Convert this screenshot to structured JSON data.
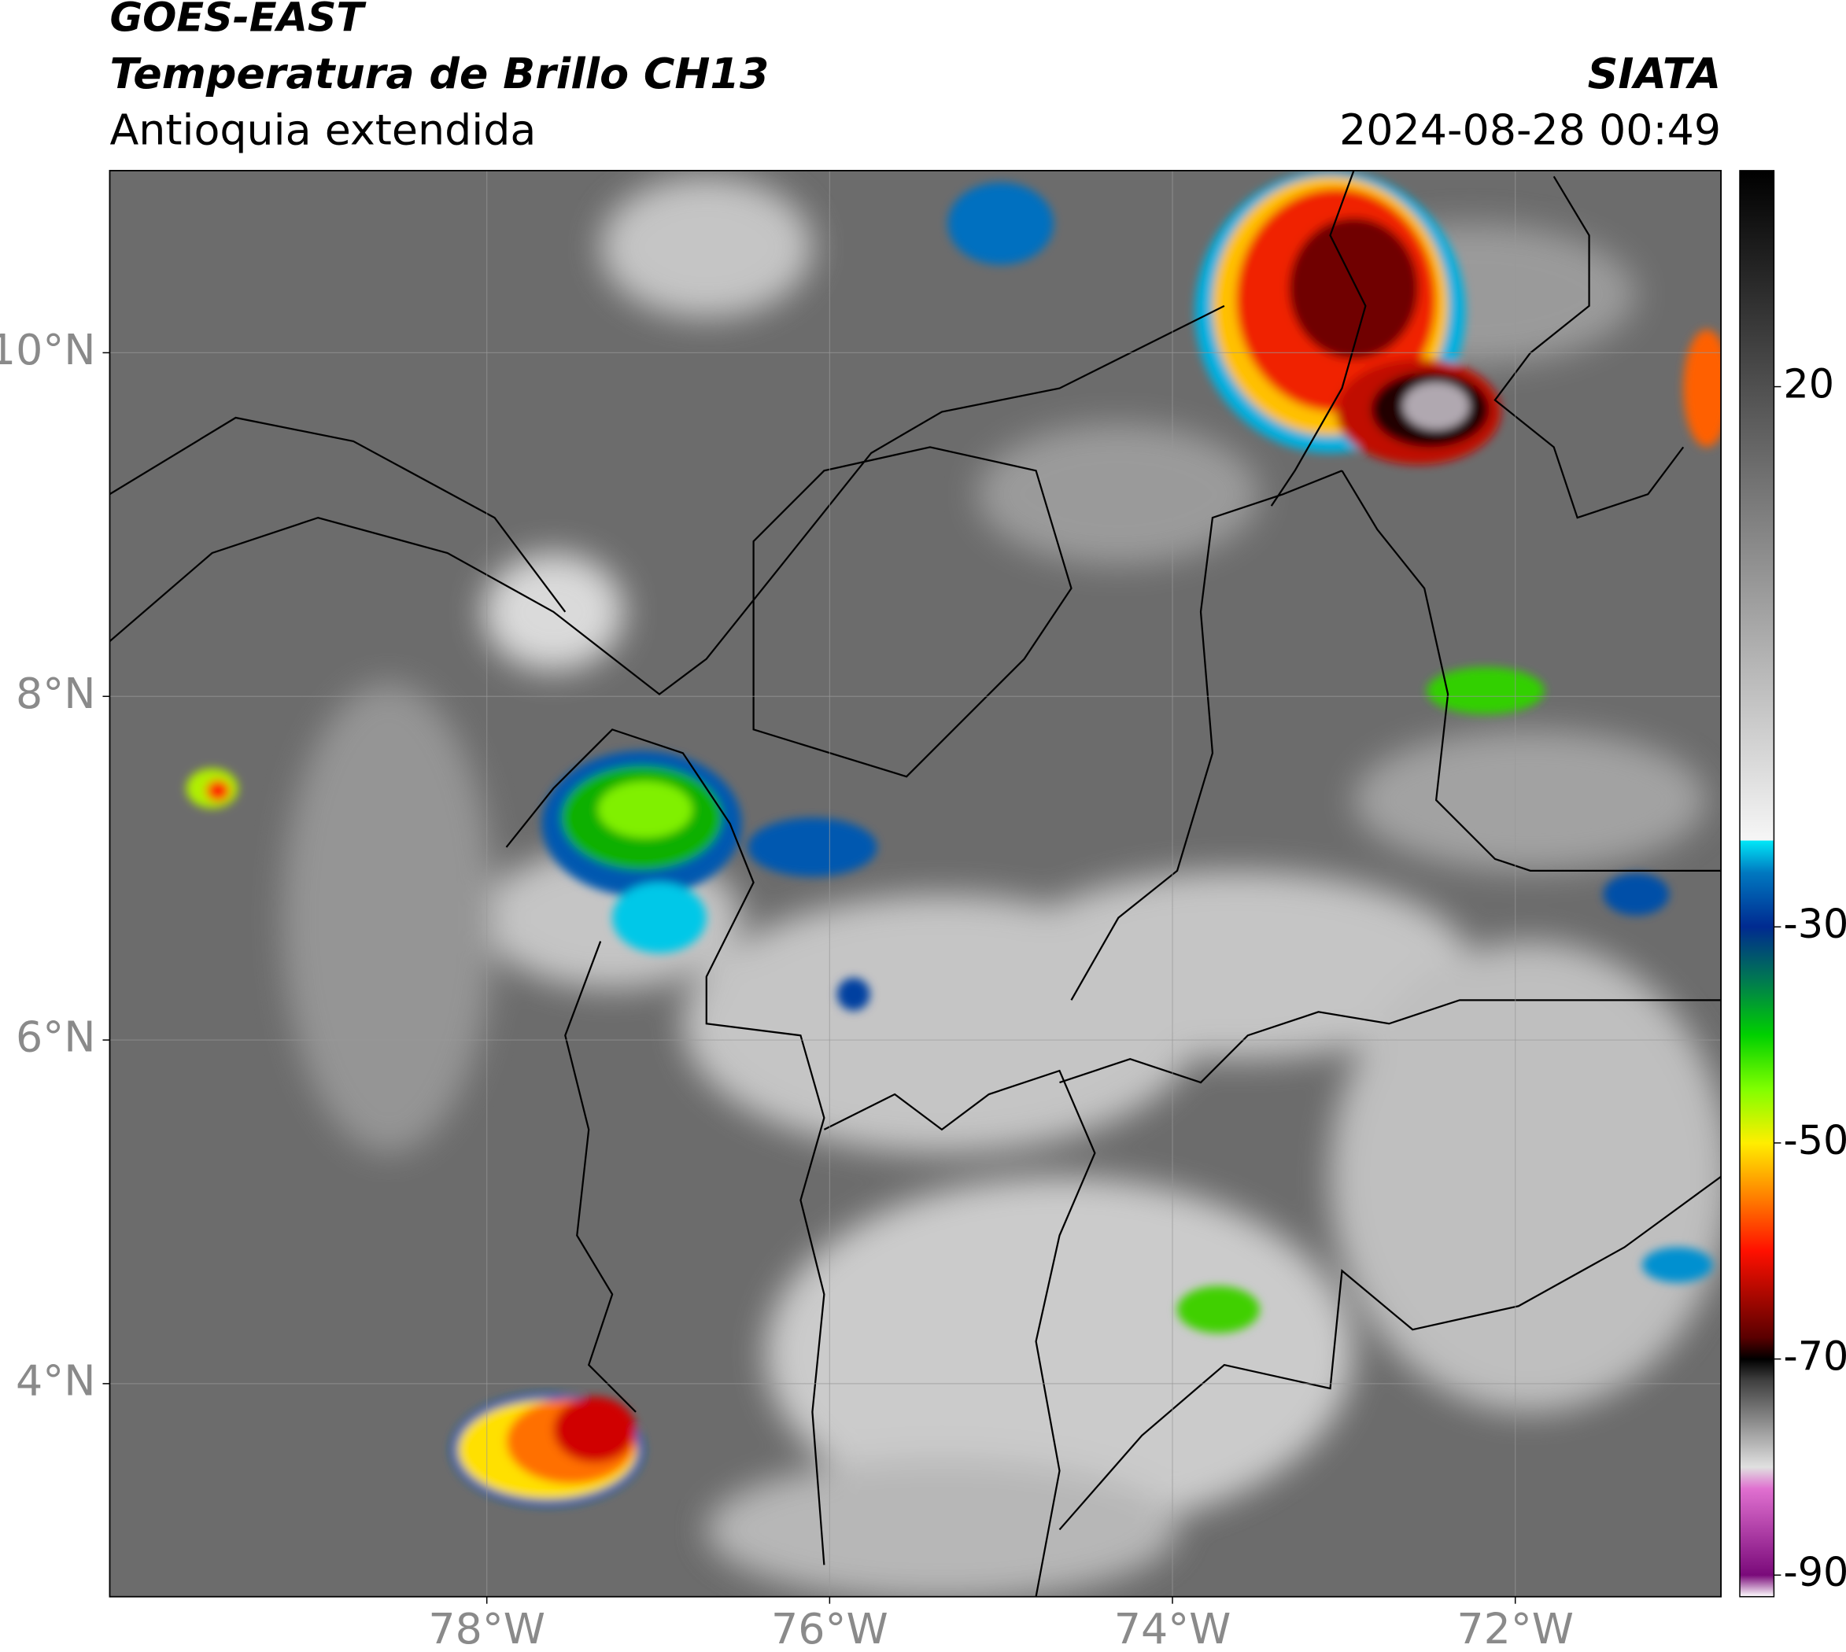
{
  "header": {
    "satellite": "GOES-EAST",
    "product": "Temperatura de Brillo CH13",
    "region": "Antioquia extendida",
    "source": "SIATA",
    "datetime": "2024-08-28 00:49"
  },
  "map": {
    "xlim": [
      -80.2,
      -70.8
    ],
    "ylim": [
      2.76,
      11.06
    ],
    "xticks": [
      {
        "value": -78,
        "label": "78°W"
      },
      {
        "value": -76,
        "label": "76°W"
      },
      {
        "value": -74,
        "label": "74°W"
      },
      {
        "value": -72,
        "label": "72°W"
      }
    ],
    "yticks": [
      {
        "value": 4,
        "label": "4°N"
      },
      {
        "value": 6,
        "label": "6°N"
      },
      {
        "value": 8,
        "label": "8°N"
      },
      {
        "value": 10,
        "label": "10°N"
      }
    ],
    "grid": true
  },
  "colorbar": {
    "lim": [
      -92,
      40
    ],
    "ticks": [
      -90,
      -70,
      -50,
      -30,
      20
    ],
    "colormap": [
      {
        "value": -92,
        "color": "#ffffff"
      },
      {
        "value": -90,
        "color": "#7a0a7a"
      },
      {
        "value": -82,
        "color": "#e070d0"
      },
      {
        "value": -80,
        "color": "#e0e0e0"
      },
      {
        "value": -72,
        "color": "#404040"
      },
      {
        "value": -70,
        "color": "#000000"
      },
      {
        "value": -68,
        "color": "#5a0000"
      },
      {
        "value": -60,
        "color": "#ff1000"
      },
      {
        "value": -55,
        "color": "#ff8000"
      },
      {
        "value": -50,
        "color": "#ffee00"
      },
      {
        "value": -45,
        "color": "#80ff00"
      },
      {
        "value": -40,
        "color": "#00d000"
      },
      {
        "value": -35,
        "color": "#007a50"
      },
      {
        "value": -30,
        "color": "#002a90"
      },
      {
        "value": -25,
        "color": "#0078c0"
      },
      {
        "value": -22,
        "color": "#00e8f8"
      },
      {
        "value": -22,
        "color": "#f6f6f6"
      },
      {
        "value": 40,
        "color": "#000000"
      }
    ]
  }
}
